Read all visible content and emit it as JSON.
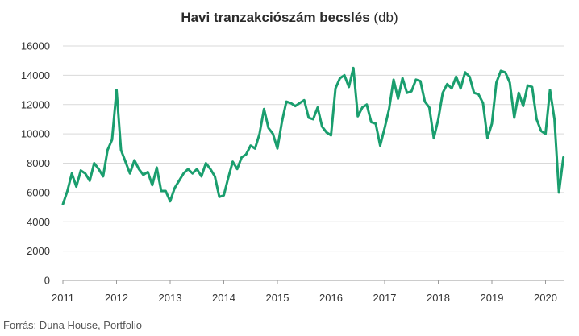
{
  "chart_data": {
    "type": "line",
    "title": "Havi tranzakciószám becslés",
    "title_unit": "(db)",
    "source": "Forrás: Duna House, Portfolio",
    "ylim": [
      0,
      16000
    ],
    "y_ticks": [
      0,
      2000,
      4000,
      6000,
      8000,
      10000,
      12000,
      14000,
      16000
    ],
    "y_tick_labels": [
      "0",
      "2000",
      "4000",
      "6000",
      "8000",
      "10000",
      "12000",
      "14000",
      "16000"
    ],
    "x_ticks": [
      "2011",
      "2012",
      "2013",
      "2014",
      "2015",
      "2016",
      "2017",
      "2018",
      "2019",
      "2020"
    ],
    "grid": "horizontal",
    "line_color": "#1a9e6e",
    "series": [
      {
        "start": "2011-01",
        "values": [
          5200,
          6100,
          7300,
          6400,
          7500,
          7300,
          6800,
          8000,
          7600,
          7100,
          8900,
          9600,
          13000,
          8900,
          8100,
          7300,
          8200,
          7600,
          7200,
          7400,
          6500,
          7700,
          6100,
          6100,
          5400,
          6300,
          6800,
          7300,
          7600,
          7300,
          7600,
          7100,
          8000,
          7600,
          7100,
          5700,
          5800,
          7000,
          8100,
          7600,
          8400,
          8600,
          9200,
          9000,
          10000,
          11700,
          10400,
          10000,
          9000,
          10800,
          12200,
          12100,
          11900,
          12100,
          12300,
          11100,
          11000,
          11800,
          10500,
          10100,
          9900,
          13100,
          13800,
          14000,
          13200,
          14500,
          11200,
          11800,
          12000,
          10800,
          10700,
          9200,
          10400,
          11700,
          13700,
          12400,
          13800,
          12800,
          12900,
          13700,
          13600,
          12200,
          11800,
          9700,
          11000,
          12800,
          13400,
          13100,
          13900,
          13100,
          14200,
          13900,
          12800,
          12700,
          12100,
          9700,
          10700,
          13500,
          14300,
          14200,
          13500,
          11100,
          12800,
          11900,
          13300,
          13200,
          11000,
          10200,
          10000,
          13000,
          11000,
          6000,
          8400
        ]
      }
    ]
  }
}
